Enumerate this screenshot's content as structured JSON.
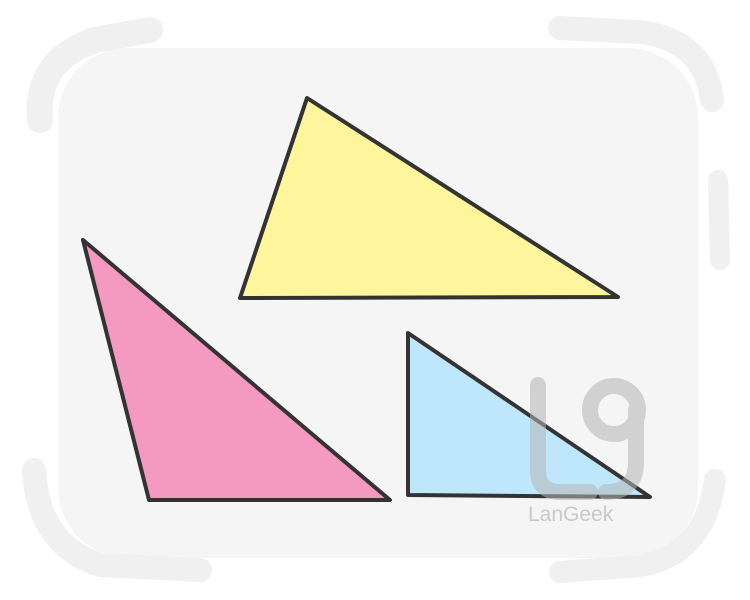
{
  "illustration": {
    "colors": {
      "background": "#ffffff",
      "frame": "#f5f5f5",
      "frame_strokes": "#f0f0f0",
      "outline": "#333333",
      "yellow_triangle": "#fff59d",
      "pink_triangle": "#f49ac1",
      "blue_triangle": "#bfe7fb",
      "watermark": "#c9c9c9"
    },
    "shapes": [
      "yellow-triangle",
      "pink-triangle",
      "blue-right-triangle"
    ],
    "watermark": {
      "icon": "langeek-logo-icon",
      "text": "LanGeek"
    }
  }
}
